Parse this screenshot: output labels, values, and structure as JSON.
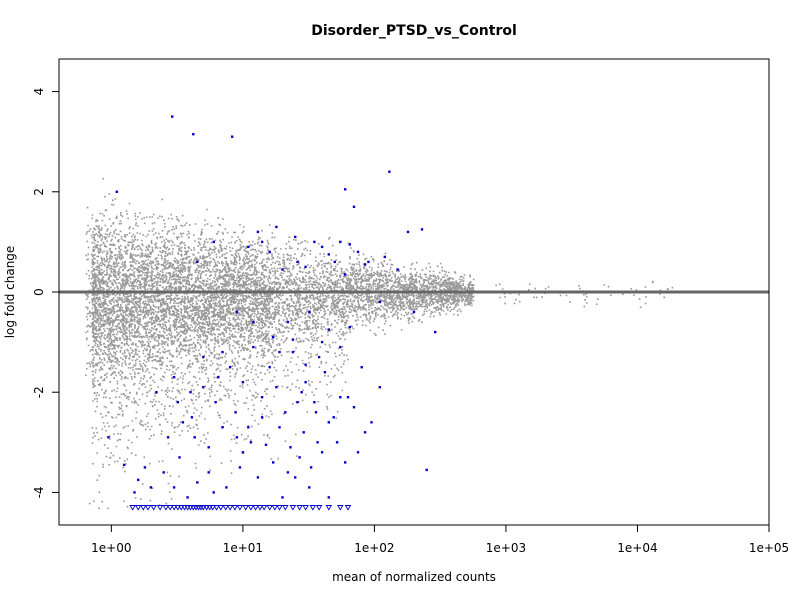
{
  "chart_data": {
    "type": "scatter",
    "title": "Disorder_PTSD_vs_Control",
    "xlabel": "mean of normalized counts",
    "ylabel": "log fold change",
    "x_scale": "log10",
    "xlim": [
      0.4,
      100000
    ],
    "ylim": [
      -4.65,
      4.65
    ],
    "x_ticks": [
      1,
      10,
      100,
      1000,
      10000,
      100000
    ],
    "x_tick_labels": [
      "1e+00",
      "1e+01",
      "1e+02",
      "1e+03",
      "1e+04",
      "1e+05"
    ],
    "y_ticks": [
      -4,
      -2,
      0,
      2,
      4
    ],
    "y_tick_labels": [
      "-4",
      "-2",
      "0",
      "2",
      "4"
    ],
    "reference_line": {
      "y": 0,
      "color": "#666666"
    },
    "grid": false,
    "legend": "none",
    "colors": {
      "not_significant": "#999999",
      "significant": "#0000cc"
    },
    "clipped_marker": "open-down-triangle at lower y limit",
    "series": [
      {
        "points": [
          [
            2.9,
            3.5
          ],
          [
            4.2,
            3.15
          ],
          [
            8.3,
            3.1
          ],
          [
            130,
            2.4
          ],
          [
            1.1,
            2.0
          ],
          [
            60,
            2.05
          ],
          [
            18,
            1.3
          ],
          [
            13,
            1.2
          ],
          [
            25,
            1.1
          ],
          [
            35,
            1.0
          ],
          [
            40,
            0.9
          ],
          [
            55,
            1.0
          ],
          [
            65,
            0.95
          ],
          [
            75,
            0.8
          ],
          [
            120,
            0.7
          ],
          [
            230,
            1.25
          ],
          [
            180,
            1.2
          ],
          [
            90,
            0.6
          ],
          [
            30,
            0.5
          ],
          [
            45,
            0.75
          ],
          [
            11,
            0.9
          ],
          [
            16,
            0.8
          ],
          [
            6,
            1.0
          ],
          [
            4.5,
            0.6
          ],
          [
            50,
            0.6
          ],
          [
            85,
            0.55
          ],
          [
            70,
            1.7
          ],
          [
            110,
            -0.2
          ],
          [
            200,
            -0.4
          ],
          [
            290,
            -0.8
          ],
          [
            65,
            -0.7
          ],
          [
            45,
            -0.75
          ],
          [
            32,
            -0.4
          ],
          [
            22,
            -0.6
          ],
          [
            17,
            -0.9
          ],
          [
            12,
            -0.6
          ],
          [
            9,
            -0.4
          ],
          [
            24,
            -1.2
          ],
          [
            38,
            -1.3
          ],
          [
            55,
            -1.1
          ],
          [
            42,
            -1.6
          ],
          [
            30,
            -1.8
          ],
          [
            28,
            -2.0
          ],
          [
            35,
            -2.2
          ],
          [
            18,
            -1.9
          ],
          [
            14,
            -2.1
          ],
          [
            10,
            -1.8
          ],
          [
            8,
            -1.5
          ],
          [
            6.5,
            -1.7
          ],
          [
            5,
            -1.9
          ],
          [
            4,
            -2.0
          ],
          [
            3.2,
            -2.2
          ],
          [
            3.5,
            -2.6
          ],
          [
            4.3,
            -2.9
          ],
          [
            5.5,
            -3.1
          ],
          [
            7,
            -2.7
          ],
          [
            9,
            -2.9
          ],
          [
            11.5,
            -3.0
          ],
          [
            14,
            -2.5
          ],
          [
            19,
            -2.7
          ],
          [
            23,
            -3.1
          ],
          [
            27,
            -3.3
          ],
          [
            33,
            -3.5
          ],
          [
            40,
            -3.2
          ],
          [
            52,
            -3.0
          ],
          [
            60,
            -3.4
          ],
          [
            75,
            -3.2
          ],
          [
            85,
            -2.8
          ],
          [
            45,
            -2.6
          ],
          [
            36,
            -2.4
          ],
          [
            22,
            -3.6
          ],
          [
            17,
            -3.4
          ],
          [
            13,
            -3.7
          ],
          [
            9.5,
            -3.5
          ],
          [
            7.5,
            -3.9
          ],
          [
            5.5,
            -3.6
          ],
          [
            4.5,
            -3.8
          ],
          [
            3.8,
            -4.1
          ],
          [
            3,
            -3.9
          ],
          [
            2.5,
            -3.6
          ],
          [
            2,
            -3.9
          ],
          [
            1.6,
            -3.75
          ],
          [
            1.25,
            -3.45
          ],
          [
            0.95,
            -2.9
          ],
          [
            1.5,
            -4.0
          ],
          [
            1.8,
            -3.5
          ],
          [
            6,
            -4.0
          ],
          [
            10,
            -3.2
          ],
          [
            15,
            -3.05
          ],
          [
            20,
            -4.1
          ],
          [
            25,
            -3.7
          ],
          [
            32,
            -3.9
          ],
          [
            45,
            -4.1
          ],
          [
            250,
            -3.55
          ],
          [
            70,
            -2.3
          ],
          [
            95,
            -2.6
          ],
          [
            110,
            -1.9
          ],
          [
            80,
            -1.5
          ],
          [
            55,
            -2.1
          ],
          [
            26,
            -2.2
          ],
          [
            16,
            -1.5
          ],
          [
            12,
            -1.1
          ],
          [
            7,
            -1.2
          ],
          [
            5,
            -1.3
          ],
          [
            3,
            -1.7
          ],
          [
            2.2,
            -2.0
          ],
          [
            2.7,
            -2.9
          ],
          [
            3.3,
            -3.3
          ],
          [
            4.1,
            -2.5
          ],
          [
            6.2,
            -2.2
          ],
          [
            8.8,
            -2.4
          ],
          [
            11,
            -2.7
          ],
          [
            21,
            -2.4
          ],
          [
            29,
            -2.8
          ],
          [
            37,
            -3.0
          ],
          [
            49,
            -2.5
          ],
          [
            63,
            -2.1
          ],
          [
            40,
            -1.0
          ],
          [
            30,
            -1.45
          ],
          [
            19,
            -1.2
          ],
          [
            24,
            -0.95
          ],
          [
            150,
            0.45
          ],
          [
            60,
            0.35
          ],
          [
            26,
            0.6
          ],
          [
            20,
            0.45
          ],
          [
            14,
            1.0
          ]
        ]
      },
      {
        "clipped": true,
        "x": [
          1.45,
          1.6,
          1.75,
          1.9,
          2.1,
          2.35,
          2.6,
          2.8,
          3.0,
          3.2,
          3.4,
          3.6,
          3.8,
          4.0,
          4.2,
          4.4,
          4.6,
          4.8,
          5.0,
          5.3,
          5.6,
          5.9,
          6.3,
          6.8,
          7.4,
          8.0,
          8.7,
          9.5,
          10.5,
          11.5,
          12.5,
          13.5,
          14.5,
          16,
          17.5,
          19,
          21,
          24,
          27,
          30,
          34,
          38,
          45,
          55,
          63
        ]
      }
    ]
  }
}
